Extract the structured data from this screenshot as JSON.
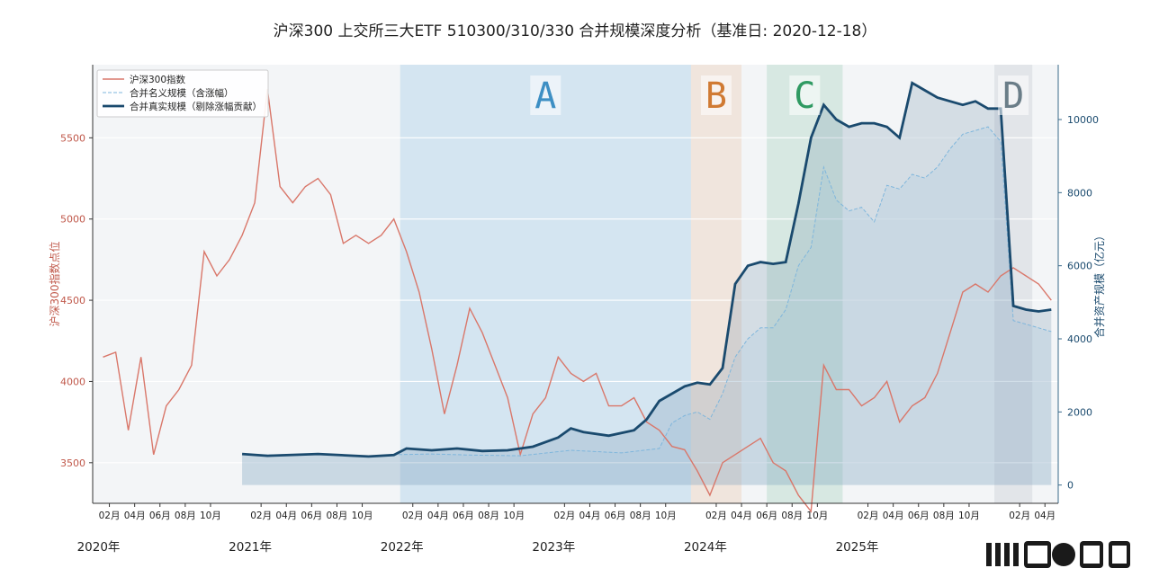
{
  "chart_data": {
    "title": "沪深300 上交所三大ETF 510300/310/330 合并规模深度分析（基准日: 2020-12-18）",
    "type": "line",
    "x_axis": {
      "month_labels": [
        "02月",
        "04月",
        "06月",
        "08月",
        "10月"
      ],
      "last_month_label": "04月",
      "year_labels": [
        "2020年",
        "2021年",
        "2022年",
        "2023年",
        "2024年",
        "2025年"
      ],
      "range": [
        "2020-01",
        "2026-04"
      ]
    },
    "y_left": {
      "label": "沪深300指数点位",
      "ticks": [
        "3500",
        "4000",
        "4500",
        "5000",
        "5500"
      ],
      "range": [
        3250,
        5950
      ]
    },
    "y_right": {
      "label": "合并资产规模（亿元）",
      "ticks": [
        "0",
        "2000",
        "4000",
        "6000",
        "8000",
        "10000"
      ],
      "range": [
        -500,
        11500
      ]
    },
    "legend": {
      "position": "top-left",
      "entries": [
        "沪深300指数",
        "合并名义规模（含涨幅）",
        "合并真实规模（剔除涨幅贡献）"
      ]
    },
    "regions": [
      {
        "label": "A",
        "start": "2022-01",
        "end": "2023-11",
        "color": "#3b9ad8",
        "label_color": "#3d8fc4"
      },
      {
        "label": "B",
        "start": "2023-12",
        "end": "2024-03",
        "color": "#e09a5c",
        "label_color": "#d07a33"
      },
      {
        "label": "C",
        "start": "2024-06",
        "end": "2024-11",
        "color": "#4fae7e",
        "label_color": "#2f9a62"
      },
      {
        "label": "D",
        "start": "2025-12",
        "end": "2026-02",
        "color": "#8c9aa4",
        "label_color": "#6a7d88"
      }
    ],
    "series": [
      {
        "name": "沪深300指数",
        "axis": "left",
        "color": "#d9776a",
        "points": [
          [
            "2020-01",
            4150
          ],
          [
            "2020-02",
            4180
          ],
          [
            "2020-03",
            3700
          ],
          [
            "2020-04",
            4150
          ],
          [
            "2020-05",
            3550
          ],
          [
            "2020-06",
            3850
          ],
          [
            "2020-07",
            3950
          ],
          [
            "2020-08",
            4100
          ],
          [
            "2020-09",
            4800
          ],
          [
            "2020-10",
            4650
          ],
          [
            "2020-11",
            4750
          ],
          [
            "2020-12",
            4900
          ],
          [
            "2021-01",
            5100
          ],
          [
            "2021-02",
            5800
          ],
          [
            "2021-03",
            5200
          ],
          [
            "2021-04",
            5100
          ],
          [
            "2021-05",
            5200
          ],
          [
            "2021-06",
            5250
          ],
          [
            "2021-07",
            5150
          ],
          [
            "2021-08",
            4850
          ],
          [
            "2021-09",
            4900
          ],
          [
            "2021-10",
            4850
          ],
          [
            "2021-11",
            4900
          ],
          [
            "2021-12",
            5000
          ],
          [
            "2022-01",
            4800
          ],
          [
            "2022-02",
            4550
          ],
          [
            "2022-03",
            4200
          ],
          [
            "2022-04",
            3800
          ],
          [
            "2022-05",
            4100
          ],
          [
            "2022-06",
            4450
          ],
          [
            "2022-07",
            4300
          ],
          [
            "2022-08",
            4100
          ],
          [
            "2022-09",
            3900
          ],
          [
            "2022-10",
            3550
          ],
          [
            "2022-11",
            3800
          ],
          [
            "2022-12",
            3900
          ],
          [
            "2023-01",
            4150
          ],
          [
            "2023-02",
            4050
          ],
          [
            "2023-03",
            4000
          ],
          [
            "2023-04",
            4050
          ],
          [
            "2023-05",
            3850
          ],
          [
            "2023-06",
            3850
          ],
          [
            "2023-07",
            3900
          ],
          [
            "2023-08",
            3750
          ],
          [
            "2023-09",
            3700
          ],
          [
            "2023-10",
            3600
          ],
          [
            "2023-11",
            3580
          ],
          [
            "2023-12",
            3450
          ],
          [
            "2024-01",
            3300
          ],
          [
            "2024-02",
            3500
          ],
          [
            "2024-03",
            3550
          ],
          [
            "2024-04",
            3600
          ],
          [
            "2024-05",
            3650
          ],
          [
            "2024-06",
            3500
          ],
          [
            "2024-07",
            3450
          ],
          [
            "2024-08",
            3300
          ],
          [
            "2024-09",
            3200
          ],
          [
            "2024-10",
            4100
          ],
          [
            "2024-11",
            3950
          ],
          [
            "2024-12",
            3950
          ],
          [
            "2025-01",
            3850
          ],
          [
            "2025-02",
            3900
          ],
          [
            "2025-03",
            4000
          ],
          [
            "2025-04",
            3750
          ],
          [
            "2025-05",
            3850
          ],
          [
            "2025-06",
            3900
          ],
          [
            "2025-07",
            4050
          ],
          [
            "2025-08",
            4300
          ],
          [
            "2025-09",
            4550
          ],
          [
            "2025-10",
            4600
          ],
          [
            "2025-11",
            4550
          ],
          [
            "2025-12",
            4650
          ],
          [
            "2026-01",
            4700
          ],
          [
            "2026-02",
            4650
          ],
          [
            "2026-03",
            4600
          ],
          [
            "2026-04",
            4500
          ]
        ]
      },
      {
        "name": "合并名义规模（含涨幅）",
        "axis": "right",
        "color": "#7fb6dc",
        "points": [
          [
            "2020-12",
            850
          ],
          [
            "2021-02",
            820
          ],
          [
            "2021-06",
            850
          ],
          [
            "2021-10",
            780
          ],
          [
            "2021-12",
            830
          ],
          [
            "2022-03",
            850
          ],
          [
            "2022-06",
            820
          ],
          [
            "2022-10",
            800
          ],
          [
            "2023-02",
            950
          ],
          [
            "2023-06",
            880
          ],
          [
            "2023-09",
            1000
          ],
          [
            "2023-10",
            1700
          ],
          [
            "2023-11",
            1900
          ],
          [
            "2023-12",
            2000
          ],
          [
            "2024-01",
            1800
          ],
          [
            "2024-02",
            2500
          ],
          [
            "2024-03",
            3500
          ],
          [
            "2024-04",
            4000
          ],
          [
            "2024-05",
            4300
          ],
          [
            "2024-06",
            4300
          ],
          [
            "2024-07",
            4800
          ],
          [
            "2024-08",
            6000
          ],
          [
            "2024-09",
            6500
          ],
          [
            "2024-10",
            8700
          ],
          [
            "2024-11",
            7800
          ],
          [
            "2024-12",
            7500
          ],
          [
            "2025-01",
            7600
          ],
          [
            "2025-02",
            7200
          ],
          [
            "2025-03",
            8200
          ],
          [
            "2025-04",
            8100
          ],
          [
            "2025-05",
            8500
          ],
          [
            "2025-06",
            8400
          ],
          [
            "2025-07",
            8700
          ],
          [
            "2025-08",
            9200
          ],
          [
            "2025-09",
            9600
          ],
          [
            "2025-10",
            9700
          ],
          [
            "2025-11",
            9800
          ],
          [
            "2025-12",
            9400
          ],
          [
            "2026-01",
            4500
          ],
          [
            "2026-02",
            4400
          ],
          [
            "2026-03",
            4300
          ],
          [
            "2026-04",
            4200
          ]
        ]
      },
      {
        "name": "合并真实规模（剔除涨幅贡献）",
        "axis": "right",
        "color": "#1a4a6e",
        "points": [
          [
            "2020-12",
            850
          ],
          [
            "2021-02",
            800
          ],
          [
            "2021-06",
            850
          ],
          [
            "2021-10",
            780
          ],
          [
            "2021-12",
            820
          ],
          [
            "2022-01",
            1000
          ],
          [
            "2022-03",
            950
          ],
          [
            "2022-05",
            1000
          ],
          [
            "2022-07",
            930
          ],
          [
            "2022-09",
            950
          ],
          [
            "2022-11",
            1050
          ],
          [
            "2023-01",
            1300
          ],
          [
            "2023-02",
            1550
          ],
          [
            "2023-03",
            1450
          ],
          [
            "2023-05",
            1350
          ],
          [
            "2023-07",
            1500
          ],
          [
            "2023-08",
            1800
          ],
          [
            "2023-09",
            2300
          ],
          [
            "2023-10",
            2500
          ],
          [
            "2023-11",
            2700
          ],
          [
            "2023-12",
            2800
          ],
          [
            "2024-01",
            2750
          ],
          [
            "2024-02",
            3200
          ],
          [
            "2024-03",
            5500
          ],
          [
            "2024-04",
            6000
          ],
          [
            "2024-05",
            6100
          ],
          [
            "2024-06",
            6050
          ],
          [
            "2024-07",
            6100
          ],
          [
            "2024-08",
            7700
          ],
          [
            "2024-09",
            9500
          ],
          [
            "2024-10",
            10400
          ],
          [
            "2024-11",
            10000
          ],
          [
            "2024-12",
            9800
          ],
          [
            "2025-01",
            9900
          ],
          [
            "2025-02",
            9900
          ],
          [
            "2025-03",
            9800
          ],
          [
            "2025-04",
            9500
          ],
          [
            "2025-05",
            11000
          ],
          [
            "2025-06",
            10800
          ],
          [
            "2025-07",
            10600
          ],
          [
            "2025-08",
            10500
          ],
          [
            "2025-09",
            10400
          ],
          [
            "2025-10",
            10500
          ],
          [
            "2025-11",
            10300
          ],
          [
            "2025-12",
            10300
          ],
          [
            "2026-01",
            4900
          ],
          [
            "2026-02",
            4800
          ],
          [
            "2026-03",
            4750
          ],
          [
            "2026-04",
            4800
          ]
        ]
      }
    ]
  }
}
